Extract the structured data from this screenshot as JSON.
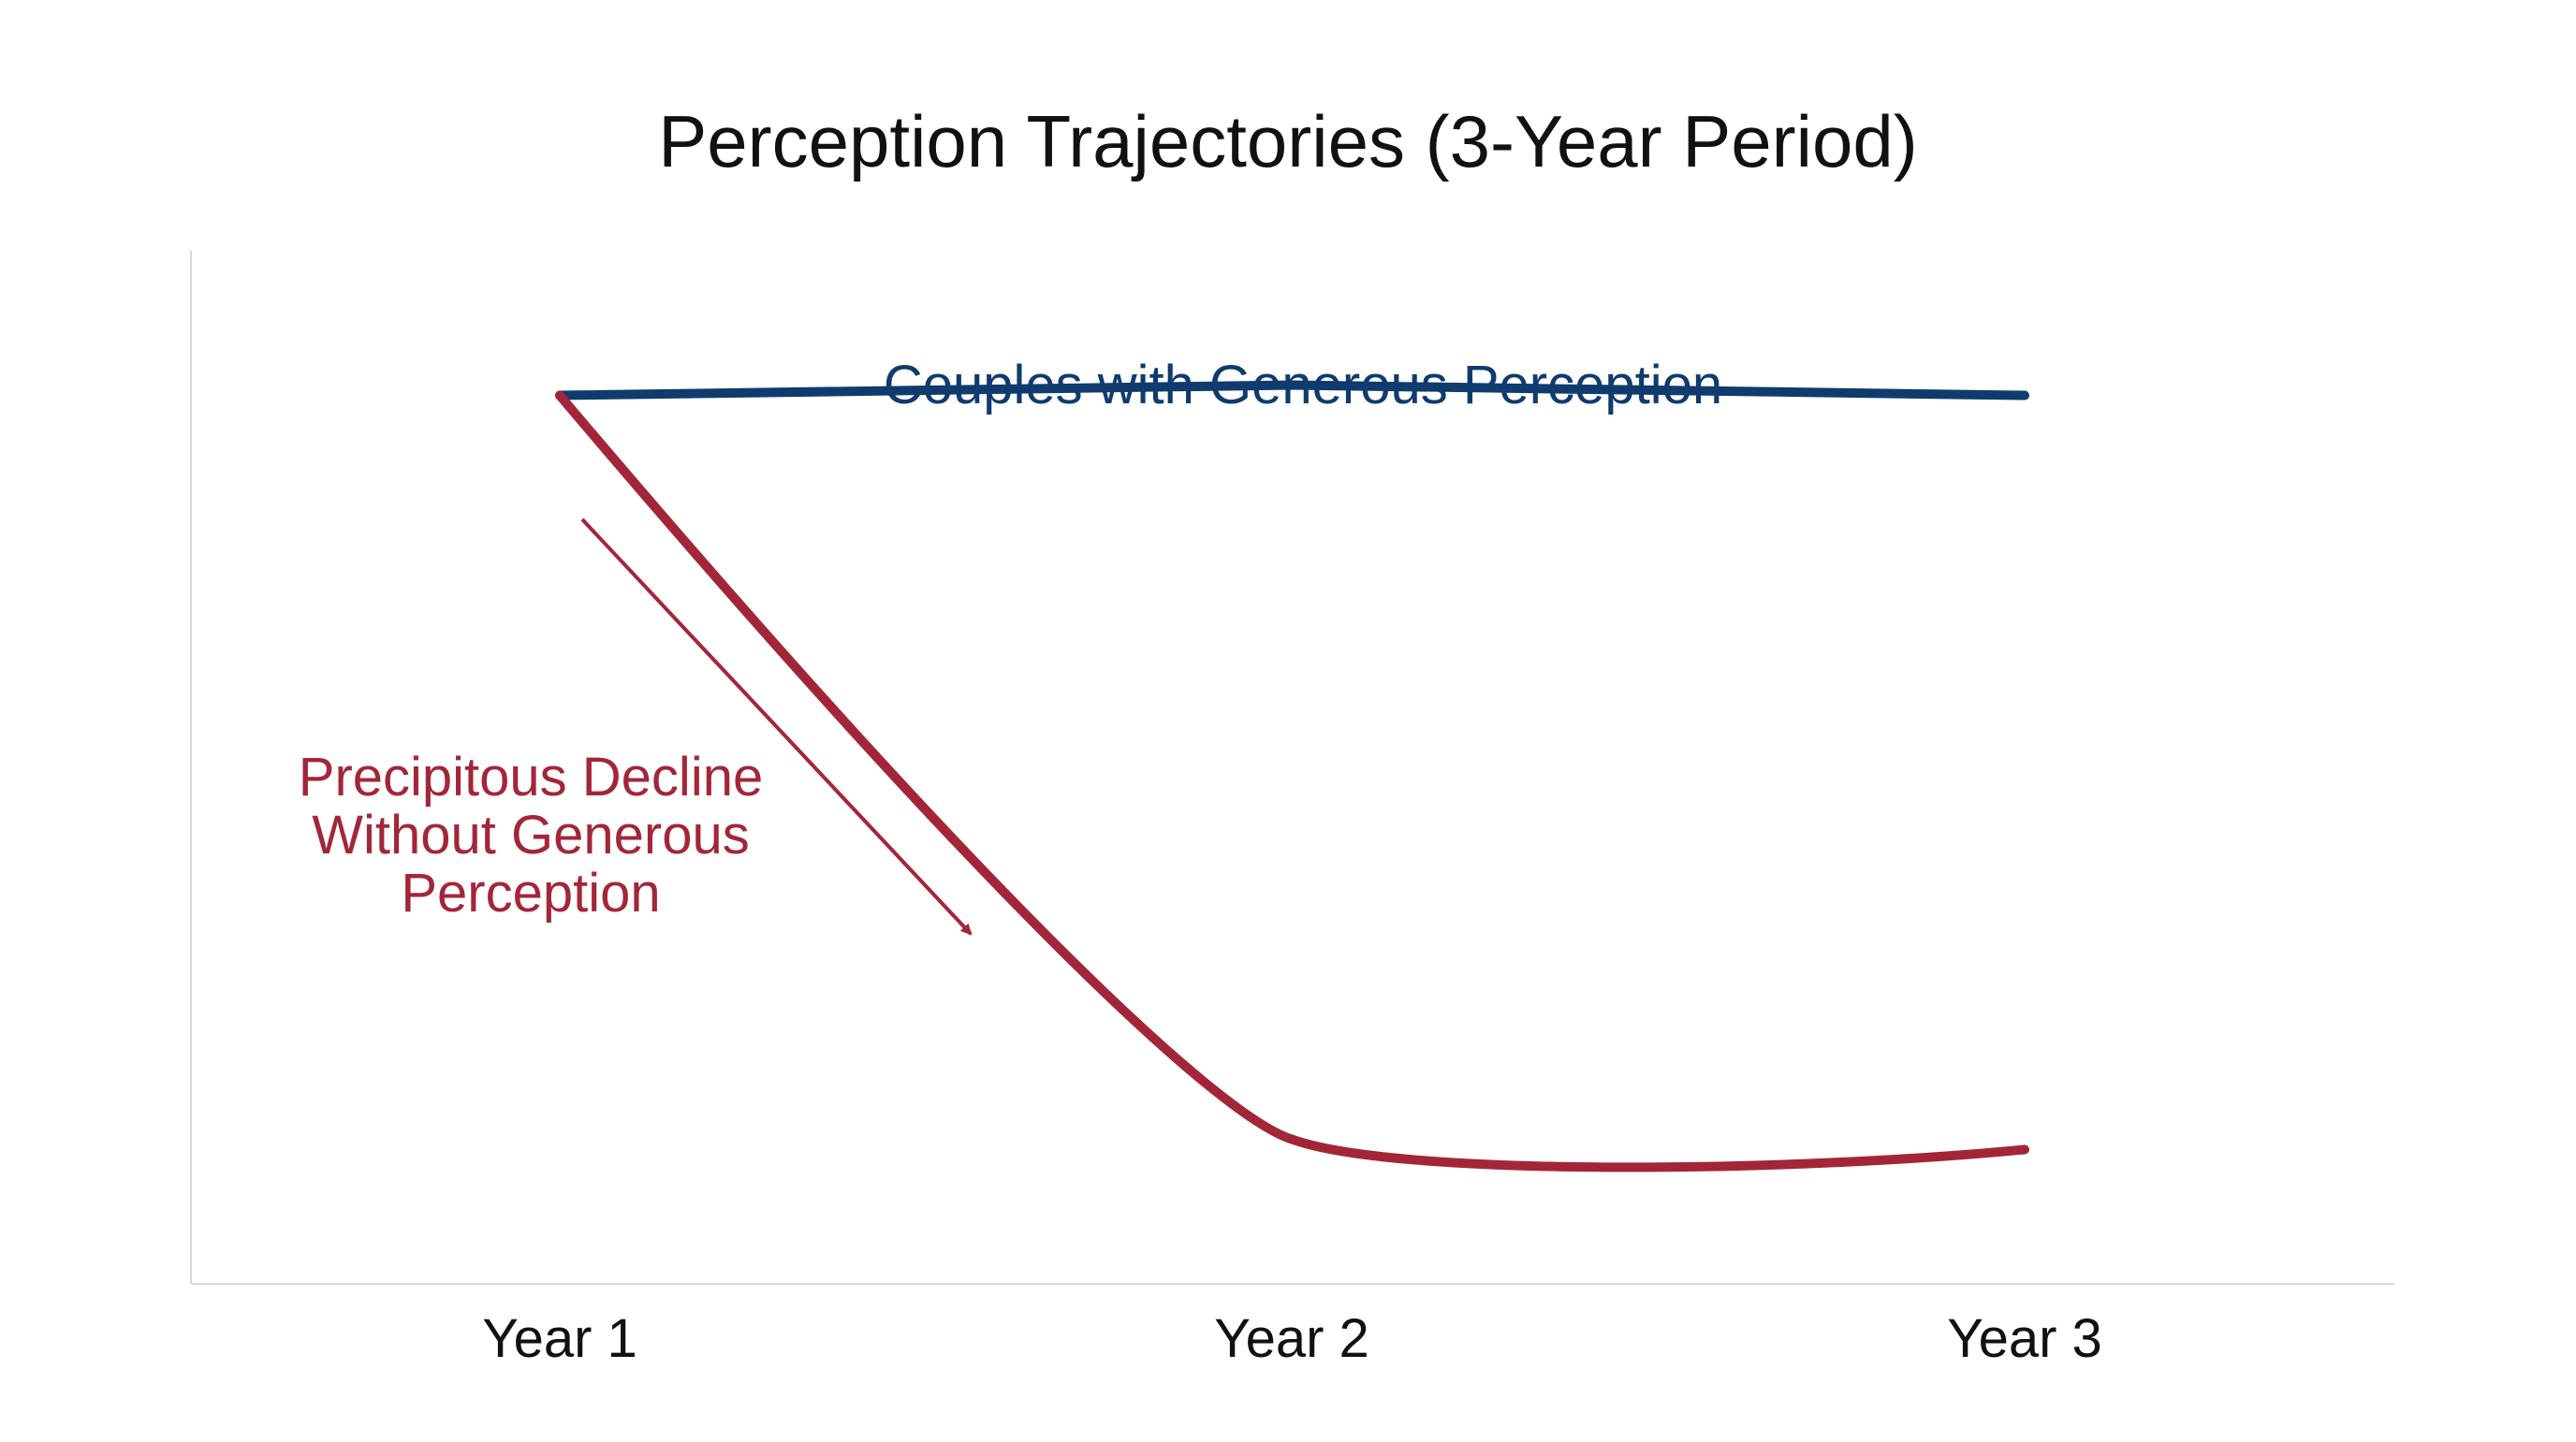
{
  "chart_data": {
    "type": "line",
    "title": "Perception Trajectories (3-Year Period)",
    "xlabel": "",
    "ylabel": "",
    "categories": [
      "Year 1",
      "Year 2",
      "Year 3"
    ],
    "grid": false,
    "legend": "inline labels",
    "series": [
      {
        "name": "Couples with Generous Perception",
        "color": "#0f3b6e",
        "values": [
          0.86,
          0.87,
          0.86
        ]
      },
      {
        "name": "",
        "color": "#a32638",
        "values": [
          0.86,
          0.14,
          0.13
        ]
      }
    ],
    "annotations": [
      {
        "text_lines": [
          "Precipitous Decline",
          "Without Generous",
          "Perception"
        ],
        "color": "#a32638",
        "arrow": "down-right along declining series"
      }
    ],
    "ylim": [
      0,
      1
    ]
  }
}
